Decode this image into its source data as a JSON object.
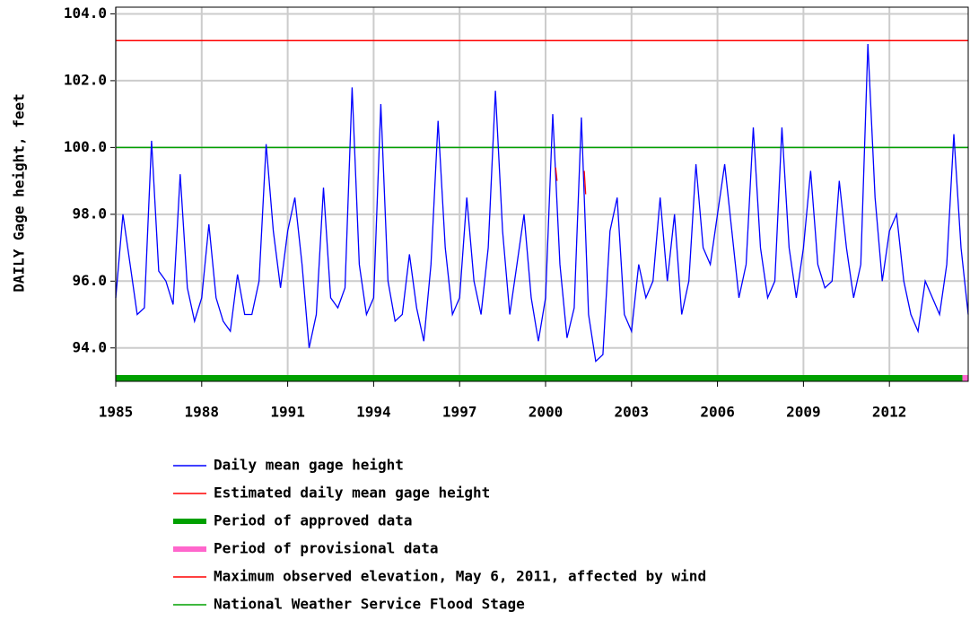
{
  "chart_data": {
    "type": "line",
    "y_label": "DAILY Gage height, feet",
    "xlim": [
      1985,
      2014.75
    ],
    "ylim": [
      93,
      104.2
    ],
    "xticks": [
      1985,
      1988,
      1991,
      1994,
      1997,
      2000,
      2003,
      2006,
      2009,
      2012
    ],
    "yticks": [
      {
        "value": 94,
        "label": "94.0"
      },
      {
        "value": 96,
        "label": "96.0"
      },
      {
        "value": 98,
        "label": "98.0"
      },
      {
        "value": 100,
        "label": "100.0"
      },
      {
        "value": 102,
        "label": "102.0"
      },
      {
        "value": 104,
        "label": "104.0"
      }
    ],
    "grid": true,
    "series": [
      {
        "name": "Daily mean gage height",
        "color": "#0000ff",
        "x": [
          1985,
          1985.25,
          1985.5,
          1985.75,
          1986,
          1986.25,
          1986.5,
          1986.75,
          1987,
          1987.25,
          1987.5,
          1987.75,
          1988,
          1988.25,
          1988.5,
          1988.75,
          1989,
          1989.25,
          1989.5,
          1989.75,
          1990,
          1990.25,
          1990.5,
          1990.75,
          1991,
          1991.25,
          1991.5,
          1991.75,
          1992,
          1992.25,
          1992.5,
          1992.75,
          1993,
          1993.25,
          1993.5,
          1993.75,
          1994,
          1994.25,
          1994.5,
          1994.75,
          1995,
          1995.25,
          1995.5,
          1995.75,
          1996,
          1996.25,
          1996.5,
          1996.75,
          1997,
          1997.25,
          1997.5,
          1997.75,
          1998,
          1998.25,
          1998.5,
          1998.75,
          1999,
          1999.25,
          1999.5,
          1999.75,
          2000,
          2000.25,
          2000.5,
          2000.75,
          2001,
          2001.25,
          2001.5,
          2001.75,
          2002,
          2002.25,
          2002.5,
          2002.75,
          2003,
          2003.25,
          2003.5,
          2003.75,
          2004,
          2004.25,
          2004.5,
          2004.75,
          2005,
          2005.25,
          2005.5,
          2005.75,
          2006,
          2006.25,
          2006.5,
          2006.75,
          2007,
          2007.25,
          2007.5,
          2007.75,
          2008,
          2008.25,
          2008.5,
          2008.75,
          2009,
          2009.25,
          2009.5,
          2009.75,
          2010,
          2010.25,
          2010.5,
          2010.75,
          2011,
          2011.25,
          2011.5,
          2011.75,
          2012,
          2012.25,
          2012.5,
          2012.75,
          2013,
          2013.25,
          2013.5,
          2013.75,
          2014,
          2014.25,
          2014.5,
          2014.75
        ],
        "values": [
          95.5,
          98.0,
          96.5,
          95.0,
          95.2,
          100.2,
          96.3,
          96.0,
          95.3,
          99.2,
          95.8,
          94.8,
          95.5,
          97.7,
          95.5,
          94.8,
          94.5,
          96.2,
          95.0,
          95.0,
          96.0,
          100.1,
          97.5,
          95.8,
          97.5,
          98.5,
          96.5,
          94.0,
          95.0,
          98.8,
          95.5,
          95.2,
          95.8,
          101.8,
          96.5,
          95.0,
          95.5,
          101.3,
          96.0,
          94.8,
          95.0,
          96.8,
          95.2,
          94.2,
          96.5,
          100.8,
          97.0,
          95.0,
          95.5,
          98.5,
          96.0,
          95.0,
          97.0,
          101.7,
          97.5,
          95.0,
          96.5,
          98.0,
          95.5,
          94.2,
          95.5,
          101.0,
          96.5,
          94.3,
          95.2,
          100.9,
          95.0,
          93.6,
          93.8,
          97.5,
          98.5,
          95.0,
          94.5,
          96.5,
          95.5,
          96.0,
          98.5,
          96.0,
          98.0,
          95.0,
          96.0,
          99.5,
          97.0,
          96.5,
          98.0,
          99.5,
          97.5,
          95.5,
          96.5,
          100.6,
          97.0,
          95.5,
          96.0,
          100.6,
          97.0,
          95.5,
          97.0,
          99.3,
          96.5,
          95.8,
          96.0,
          99.0,
          97.0,
          95.5,
          96.5,
          103.1,
          98.5,
          96.0,
          97.5,
          98.0,
          96.0,
          95.0,
          94.5,
          96.0,
          95.5,
          95.0,
          96.5,
          100.4,
          97.0,
          95.0
        ]
      },
      {
        "name": "Estimated daily mean gage height",
        "color": "#ff0000",
        "x": [
          2000.35,
          2000.4,
          null,
          2001.35,
          2001.4
        ],
        "values": [
          99.4,
          99.0,
          null,
          99.3,
          98.6
        ]
      }
    ],
    "periods": [
      {
        "name": "Period of approved data",
        "color": "#00a000",
        "start": 1985,
        "end": 2014.55
      },
      {
        "name": "Period of provisional data",
        "color": "#ff66cc",
        "start": 2014.55,
        "end": 2014.75
      }
    ],
    "reference_lines": [
      {
        "name": "Maximum observed elevation, May 6, 2011, affected by wind",
        "color": "#ff0000",
        "value": 103.2
      },
      {
        "name": "National Weather Service Flood Stage",
        "color": "#00a000",
        "value": 100
      }
    ]
  }
}
